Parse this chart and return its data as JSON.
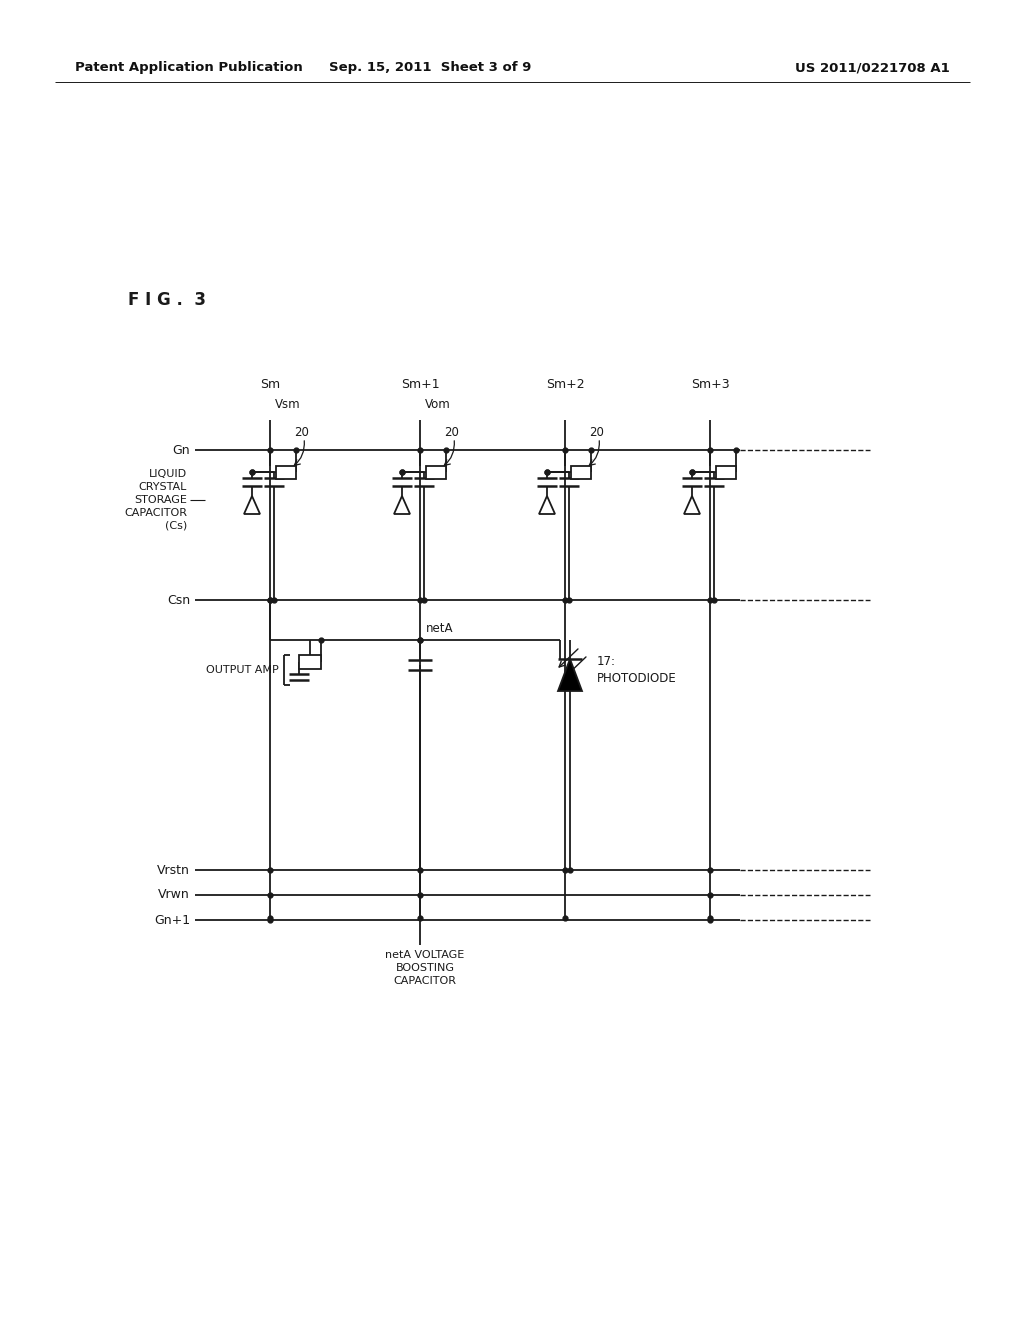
{
  "title_left": "Patent Application Publication",
  "title_mid": "Sep. 15, 2011  Sheet 3 of 9",
  "title_right": "US 2011/0221708 A1",
  "fig_label": "F I G .  3",
  "bg_color": "#ffffff",
  "lc": "#1a1a1a"
}
